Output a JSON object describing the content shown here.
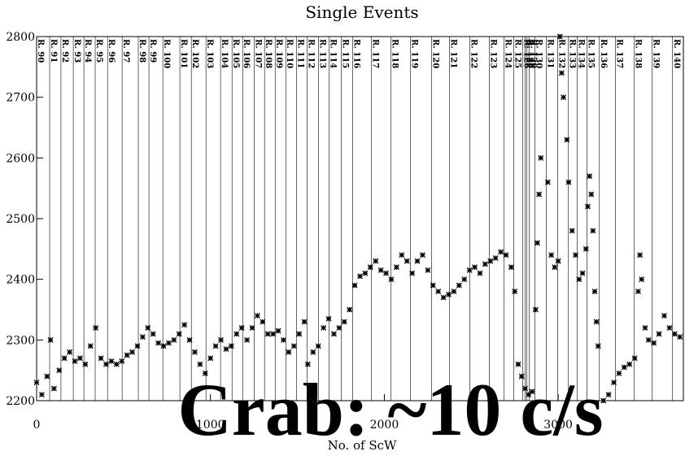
{
  "chart_data": {
    "type": "scatter",
    "title": "Single Events",
    "x_label": "No. of ScW",
    "annotation": "Crab: ~10 c/s",
    "xlim": [
      0,
      3720
    ],
    "ylim": [
      2200,
      2800
    ],
    "xticks": [
      0,
      1000,
      2000,
      3000
    ],
    "yticks": [
      2200,
      2300,
      2400,
      2500,
      2600,
      2700,
      2800
    ],
    "revolutions": {
      "labels": [
        "R. 90",
        "R. 91",
        "R. 92",
        "R. 93",
        "R. 94",
        "R. 95",
        "R. 96",
        "R. 97",
        "R. 98",
        "R. 99",
        "R. 100",
        "R. 101",
        "R. 102",
        "R. 103",
        "R. 104",
        "R. 105",
        "R. 106",
        "R. 107",
        "R. 108",
        "R. 109",
        "R. 110",
        "R. 111",
        "R. 112",
        "R. 113",
        "R. 114",
        "R. 115",
        "R. 116",
        "R. 117",
        "R. 118",
        "R. 119",
        "R. 120",
        "R. 121",
        "R. 122",
        "R. 123",
        "R. 124",
        "R. 125",
        "R. 126",
        "R. 127",
        "R. 128",
        "R. 129",
        "R. 130",
        "R. 131",
        "R. 132",
        "R. 133",
        "R. 134",
        "R. 135",
        "R. 136",
        "R. 137",
        "R. 138",
        "R. 139",
        "R. 140"
      ],
      "starts": [
        0,
        75,
        140,
        211,
        272,
        337,
        408,
        492,
        585,
        646,
        726,
        824,
        890,
        974,
        1058,
        1124,
        1185,
        1251,
        1311,
        1372,
        1433,
        1494,
        1555,
        1621,
        1682,
        1752,
        1817,
        1925,
        2037,
        2150,
        2272,
        2375,
        2492,
        2604,
        2688,
        2744,
        2796,
        2810,
        2819,
        2834,
        2866,
        2932,
        2998,
        3059,
        3110,
        3166,
        3237,
        3330,
        3438,
        3541,
        3658
      ]
    },
    "series": [
      {
        "color": "#000000",
        "x": [
          0,
          30,
          60,
          80,
          100,
          130,
          160,
          190,
          220,
          250,
          280,
          310,
          340,
          370,
          400,
          430,
          460,
          490,
          520,
          550,
          580,
          610,
          640,
          670,
          700,
          730,
          760,
          790,
          820,
          850,
          880,
          910,
          940,
          970,
          1000,
          1030,
          1060,
          1090,
          1120,
          1150,
          1180,
          1210,
          1240,
          1270,
          1300,
          1330,
          1360,
          1390,
          1420,
          1450,
          1480,
          1510,
          1540,
          1560,
          1590,
          1620,
          1650,
          1680,
          1710,
          1740,
          1770,
          1800,
          1830,
          1860,
          1890,
          1920,
          1950,
          1980,
          2010,
          2040,
          2070,
          2100,
          2130,
          2160,
          2190,
          2220,
          2250,
          2280,
          2310,
          2340,
          2370,
          2400,
          2430,
          2460,
          2490,
          2520,
          2550,
          2580,
          2610,
          2640,
          2670,
          2700,
          2730,
          2750,
          2770,
          2790,
          2810,
          2830,
          2850,
          2870,
          2880,
          2890,
          2900,
          2940,
          2960,
          2980,
          3000,
          3010,
          3020,
          3030,
          3050,
          3060,
          3080,
          3100,
          3120,
          3140,
          3160,
          3170,
          3180,
          3190,
          3200,
          3210,
          3220,
          3230,
          3260,
          3290,
          3320,
          3350,
          3380,
          3410,
          3440,
          3460,
          3470,
          3480,
          3500,
          3520,
          3550,
          3580,
          3610,
          3640,
          3670,
          3700
        ],
        "values": [
          2230,
          2210,
          2240,
          2300,
          2220,
          2250,
          2270,
          2280,
          2265,
          2270,
          2260,
          2290,
          2320,
          2270,
          2260,
          2265,
          2260,
          2265,
          2275,
          2280,
          2290,
          2305,
          2320,
          2310,
          2295,
          2290,
          2295,
          2300,
          2310,
          2325,
          2300,
          2280,
          2260,
          2245,
          2270,
          2290,
          2300,
          2285,
          2290,
          2310,
          2320,
          2300,
          2320,
          2340,
          2330,
          2310,
          2310,
          2315,
          2300,
          2280,
          2290,
          2310,
          2330,
          2260,
          2280,
          2290,
          2320,
          2335,
          2310,
          2320,
          2330,
          2350,
          2390,
          2405,
          2410,
          2420,
          2430,
          2415,
          2410,
          2400,
          2420,
          2440,
          2430,
          2410,
          2430,
          2440,
          2415,
          2390,
          2380,
          2370,
          2375,
          2380,
          2390,
          2400,
          2415,
          2420,
          2410,
          2425,
          2430,
          2435,
          2445,
          2440,
          2420,
          2380,
          2260,
          2240,
          2220,
          2210,
          2215,
          2350,
          2460,
          2540,
          2600,
          2560,
          2440,
          2420,
          2430,
          2800,
          2740,
          2700,
          2630,
          2560,
          2480,
          2440,
          2400,
          2410,
          2450,
          2520,
          2570,
          2540,
          2480,
          2380,
          2330,
          2290,
          2200,
          2210,
          2230,
          2245,
          2255,
          2260,
          2270,
          2380,
          2440,
          2400,
          2320,
          2300,
          2295,
          2310,
          2340,
          2320,
          2310,
          2305
        ]
      }
    ]
  }
}
